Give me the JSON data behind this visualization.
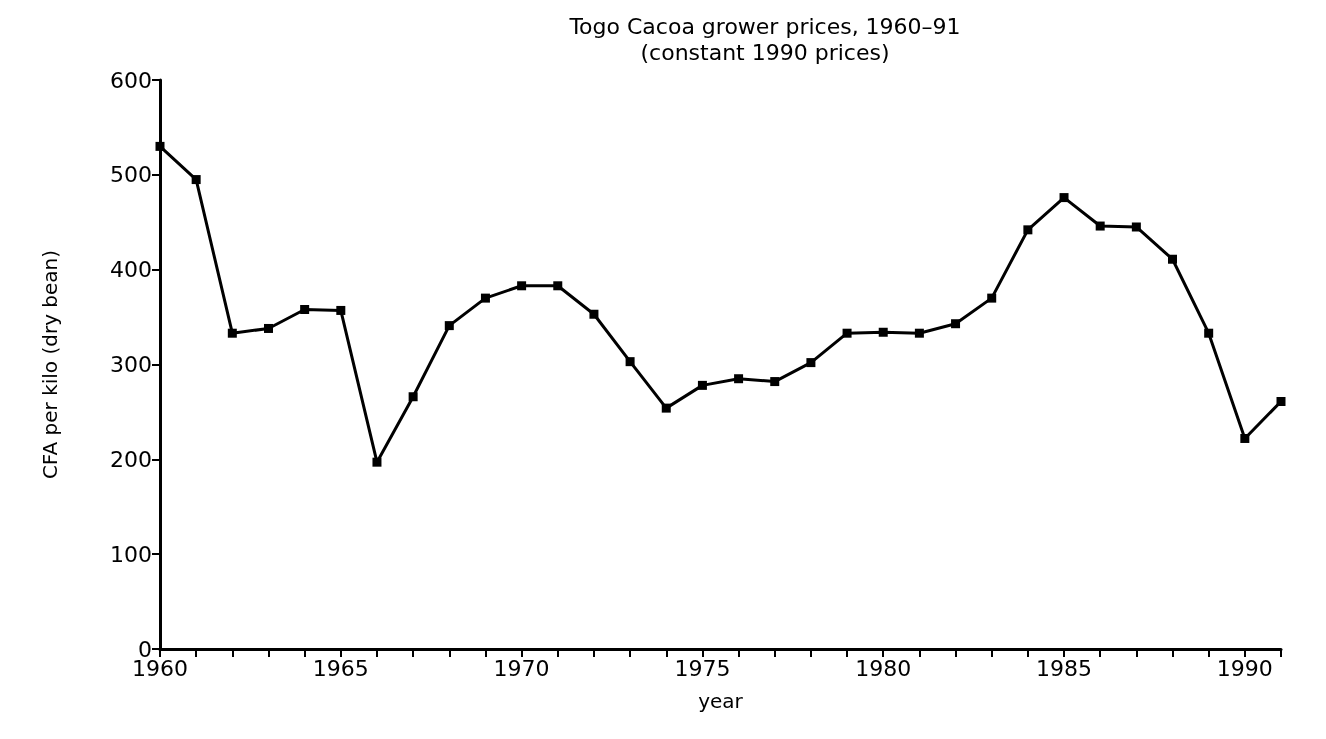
{
  "chart_data": {
    "type": "line",
    "title": "Togo Cacoa grower prices, 1960–91",
    "subtitle": "(constant 1990 prices)",
    "xlabel": "year",
    "ylabel": "CFA per kilo (dry bean)",
    "x": [
      1960,
      1961,
      1962,
      1963,
      1964,
      1965,
      1966,
      1967,
      1968,
      1969,
      1970,
      1971,
      1972,
      1973,
      1974,
      1975,
      1976,
      1977,
      1978,
      1979,
      1980,
      1981,
      1982,
      1983,
      1984,
      1985,
      1986,
      1987,
      1988,
      1989,
      1990,
      1991
    ],
    "series": [
      {
        "color": "#000000",
        "values": [
          530,
          495,
          333,
          338,
          358,
          357,
          197,
          266,
          341,
          370,
          383,
          383,
          353,
          303,
          254,
          278,
          285,
          282,
          302,
          333,
          334,
          333,
          343,
          370,
          442,
          476,
          446,
          445,
          411,
          333,
          222,
          261
        ]
      }
    ],
    "xlim": [
      1960,
      1991
    ],
    "xticks": [
      1960,
      {
        "value": 1961,
        "label": null
      },
      {
        "value": 1962,
        "label": null
      },
      {
        "value": 1963,
        "label": null
      },
      {
        "value": 1964,
        "label": null
      },
      1965,
      {
        "value": 1966,
        "label": null
      },
      {
        "value": 1967,
        "label": null
      },
      {
        "value": 1968,
        "label": null
      },
      {
        "value": 1969,
        "label": null
      },
      1970,
      {
        "value": 1971,
        "label": null
      },
      {
        "value": 1972,
        "label": null
      },
      {
        "value": 1973,
        "label": null
      },
      {
        "value": 1974,
        "label": null
      },
      1975,
      {
        "value": 1976,
        "label": null
      },
      {
        "value": 1977,
        "label": null
      },
      {
        "value": 1978,
        "label": null
      },
      {
        "value": 1979,
        "label": null
      },
      1980,
      {
        "value": 1981,
        "label": null
      },
      {
        "value": 1982,
        "label": null
      },
      {
        "value": 1983,
        "label": null
      },
      {
        "value": 1984,
        "label": null
      },
      1985,
      {
        "value": 1986,
        "label": null
      },
      {
        "value": 1987,
        "label": null
      },
      {
        "value": 1988,
        "label": null
      },
      {
        "value": 1989,
        "label": null
      },
      1990,
      {
        "value": 1991,
        "label": null
      }
    ],
    "ylim": [
      0,
      600
    ],
    "yticks": [
      0,
      100,
      200,
      300,
      400,
      500,
      600
    ],
    "grid": false,
    "marker": "square",
    "line_style": "solid"
  }
}
